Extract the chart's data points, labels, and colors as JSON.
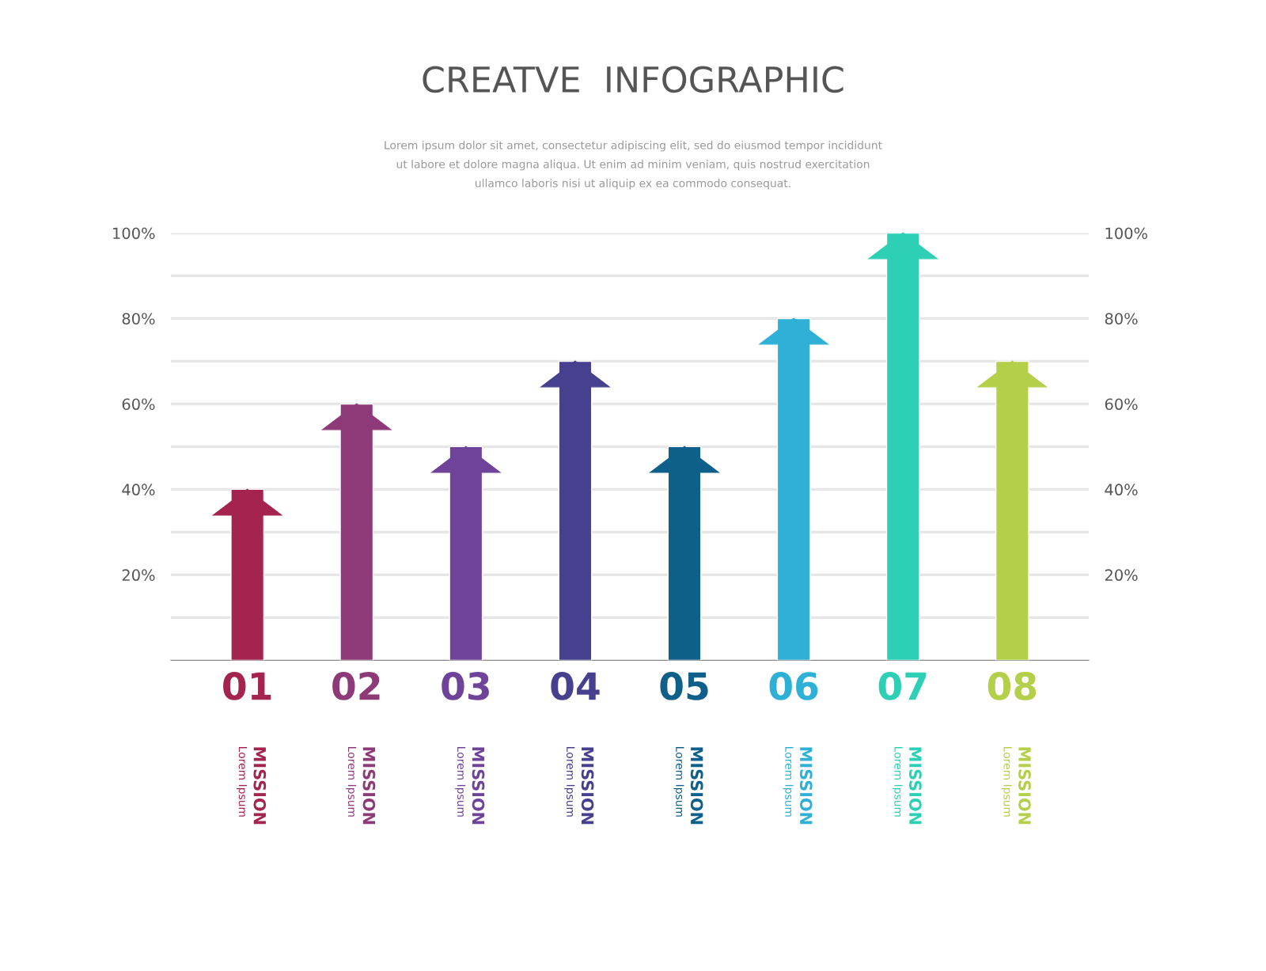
{
  "chart_data": {
    "type": "bar",
    "title": "CREATVE  INFOGRAPHIC",
    "subtitle": "Lorem ipsum dolor sit amet, consectetur adipiscing elit, sed do eiusmod tempor incididunt\nut labore et dolore magna aliqua. Ut enim ad minim veniam, quis nostrud exercitation\nullamco laboris nisi ut aliquip ex ea commodo consequat.",
    "categories": [
      "01",
      "02",
      "03",
      "04",
      "05",
      "06",
      "07",
      "08"
    ],
    "values": [
      40,
      60,
      50,
      70,
      50,
      80,
      100,
      70
    ],
    "colors": [
      "#a5234f",
      "#8e3a78",
      "#6e4399",
      "#46408f",
      "#0e5f8a",
      "#2fb0d6",
      "#2dd0b5",
      "#b4cf4a"
    ],
    "annotations": [
      "MISSION",
      "Lorem Ipsum",
      "MISSION",
      "Lorem Ipsum",
      "MISSION",
      "Lorem Ipsum",
      "MISSION",
      "Lorem Ipsum",
      "MISSION",
      "Lorem Ipsum",
      "MISSION",
      "Lorem Ipsum",
      "MISSION",
      "Lorem Ipsum",
      "MISSION",
      "Lorem Ipsum"
    ],
    "ylim": [
      0,
      100
    ],
    "yticks": [
      {
        "value": 10,
        "label": null
      },
      {
        "value": 20,
        "label": "20%"
      },
      {
        "value": 30,
        "label": null
      },
      {
        "value": 40,
        "label": "40%"
      },
      {
        "value": 50,
        "label": null
      },
      {
        "value": 60,
        "label": "60%"
      },
      {
        "value": 70,
        "label": null
      },
      {
        "value": 80,
        "label": "80%"
      },
      {
        "value": 90,
        "label": null
      },
      {
        "value": 100,
        "label": "100%"
      }
    ],
    "y2lim": [
      0,
      100
    ],
    "y2ticks": [
      {
        "value": 20,
        "label": "20%"
      },
      {
        "value": 40,
        "label": "40%"
      },
      {
        "value": 60,
        "label": "60%"
      },
      {
        "value": 80,
        "label": "80%"
      },
      {
        "value": 100,
        "label": "100%"
      }
    ],
    "grid": "y"
  }
}
